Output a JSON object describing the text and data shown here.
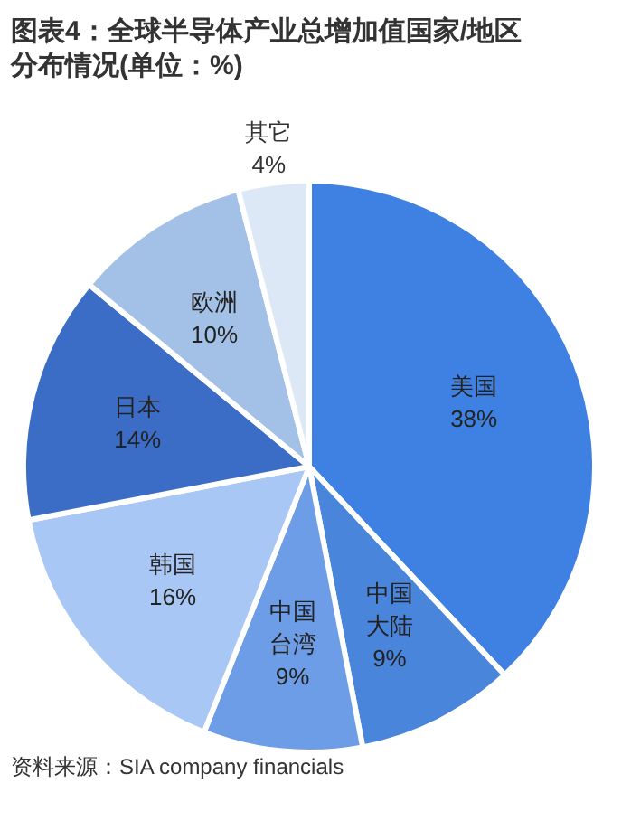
{
  "chart_data": {
    "type": "pie",
    "title": "图表4：全球半导体产业总增加值国家/地区分布情况(单位：%)",
    "categories": [
      "美国",
      "中国大陆",
      "中国台湾",
      "韩国",
      "日本",
      "欧洲",
      "其它"
    ],
    "values": [
      38,
      9,
      9,
      16,
      14,
      10,
      4
    ],
    "value_labels": [
      "38%",
      "9%",
      "9%",
      "16%",
      "14%",
      "10%",
      "4%"
    ],
    "colors": [
      "#3f80e3",
      "#4a85dc",
      "#6c9de6",
      "#a8c7f4",
      "#3b6dc7",
      "#a3c0e6",
      "#dde8f6"
    ],
    "annotations": [
      "资料来源：SIA company financials"
    ]
  }
}
